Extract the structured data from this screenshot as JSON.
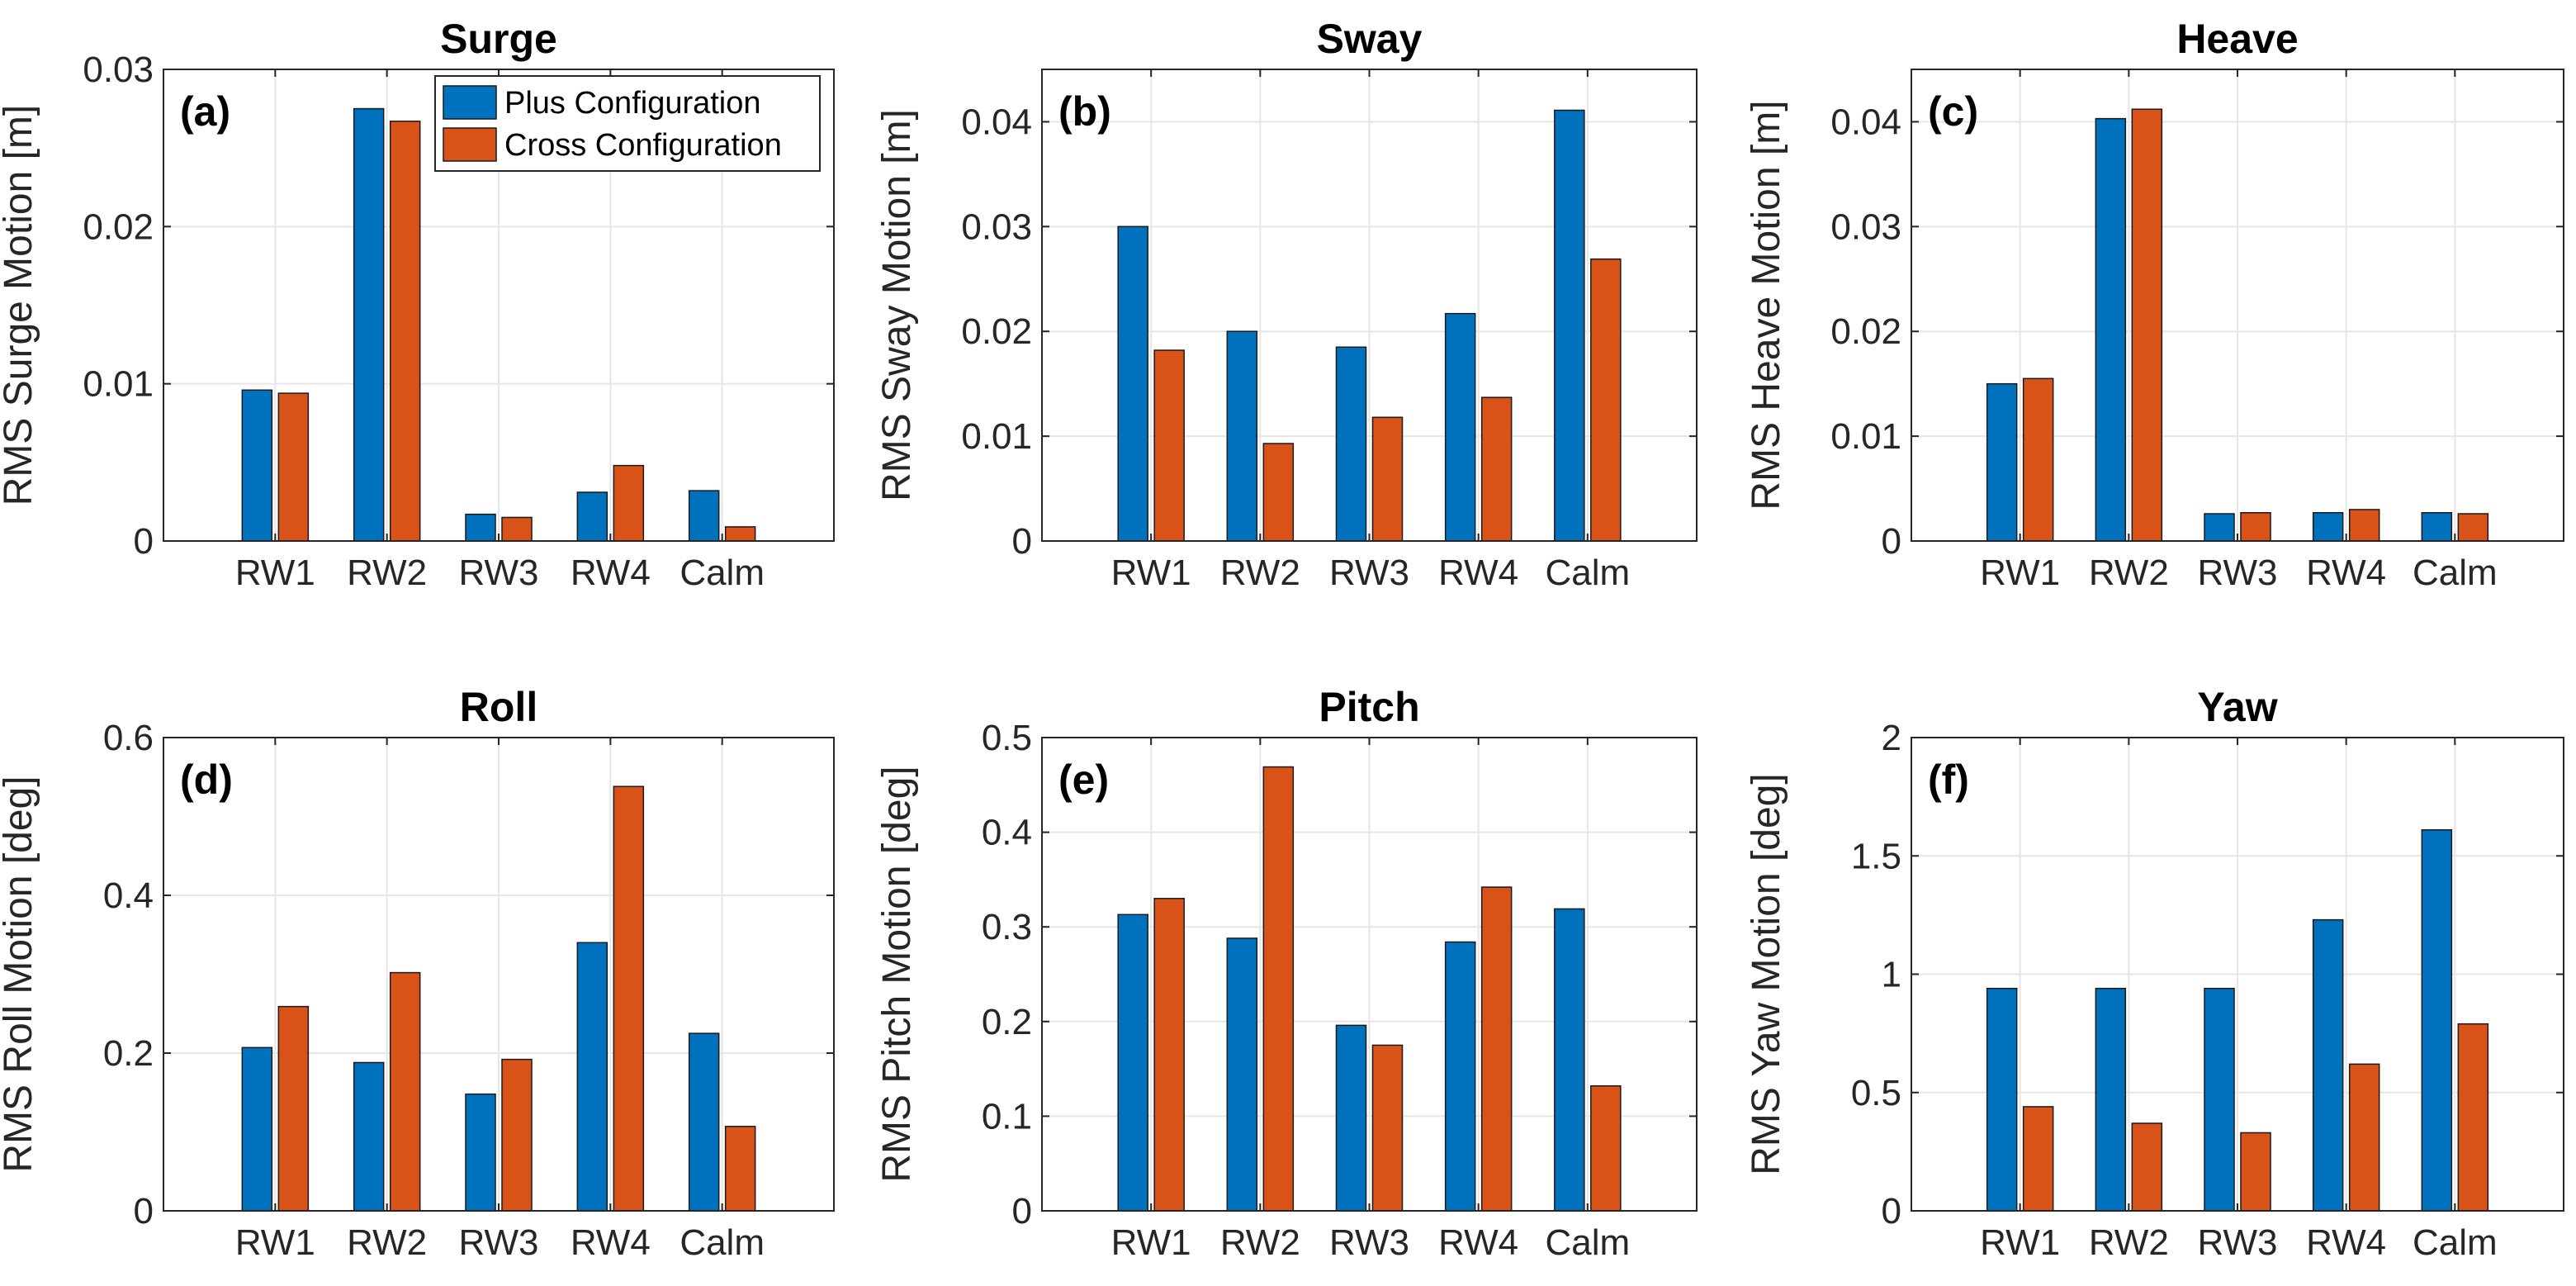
{
  "legend": {
    "items": [
      {
        "label": "Plus Configuration",
        "color": "#0072BD"
      },
      {
        "label": "Cross Configuration",
        "color": "#D95319"
      }
    ]
  },
  "chart_data": [
    {
      "type": "bar",
      "panel": "(a)",
      "title": "Surge",
      "ylabel": "RMS Surge Motion [m]",
      "xlabel": "",
      "categories": [
        "RW1",
        "RW2",
        "RW3",
        "RW4",
        "Calm"
      ],
      "ylim": [
        0,
        0.03
      ],
      "yticks": [
        0,
        0.01,
        0.02,
        0.03
      ],
      "ytick_labels": [
        "0",
        "0.01",
        "0.02",
        "0.03"
      ],
      "grid": true,
      "legend_position": "top-right",
      "series": [
        {
          "name": "Plus Configuration",
          "values": [
            0.0096,
            0.0275,
            0.0017,
            0.0031,
            0.0032
          ]
        },
        {
          "name": "Cross Configuration",
          "values": [
            0.0094,
            0.0267,
            0.0015,
            0.0048,
            0.0009
          ]
        }
      ]
    },
    {
      "type": "bar",
      "panel": "(b)",
      "title": "Sway",
      "ylabel": "RMS Sway Motion [m]",
      "xlabel": "",
      "categories": [
        "RW1",
        "RW2",
        "RW3",
        "RW4",
        "Calm"
      ],
      "ylim": [
        0,
        0.045
      ],
      "yticks": [
        0,
        0.01,
        0.02,
        0.03,
        0.04
      ],
      "ytick_labels": [
        "0",
        "0.01",
        "0.02",
        "0.03",
        "0.04"
      ],
      "grid": true,
      "series": [
        {
          "name": "Plus Configuration",
          "values": [
            0.03,
            0.02,
            0.0185,
            0.0217,
            0.0411
          ]
        },
        {
          "name": "Cross Configuration",
          "values": [
            0.0182,
            0.0093,
            0.0118,
            0.0137,
            0.0269
          ]
        }
      ]
    },
    {
      "type": "bar",
      "panel": "(c)",
      "title": "Heave",
      "ylabel": "RMS Heave Motion [m]",
      "xlabel": "",
      "categories": [
        "RW1",
        "RW2",
        "RW3",
        "RW4",
        "Calm"
      ],
      "ylim": [
        0,
        0.045
      ],
      "yticks": [
        0,
        0.01,
        0.02,
        0.03,
        0.04
      ],
      "ytick_labels": [
        "0",
        "0.01",
        "0.02",
        "0.03",
        "0.04"
      ],
      "grid": true,
      "series": [
        {
          "name": "Plus Configuration",
          "values": [
            0.015,
            0.0403,
            0.0026,
            0.0027,
            0.0027
          ]
        },
        {
          "name": "Cross Configuration",
          "values": [
            0.0155,
            0.0412,
            0.0027,
            0.003,
            0.0026
          ]
        }
      ]
    },
    {
      "type": "bar",
      "panel": "(d)",
      "title": "Roll",
      "ylabel": "RMS Roll Motion [deg]",
      "xlabel": "",
      "categories": [
        "RW1",
        "RW2",
        "RW3",
        "RW4",
        "Calm"
      ],
      "ylim": [
        0,
        0.6
      ],
      "yticks": [
        0,
        0.2,
        0.4,
        0.6
      ],
      "ytick_labels": [
        "0",
        "0.2",
        "0.4",
        "0.6"
      ],
      "grid": true,
      "series": [
        {
          "name": "Plus Configuration",
          "values": [
            0.207,
            0.188,
            0.148,
            0.34,
            0.225
          ]
        },
        {
          "name": "Cross Configuration",
          "values": [
            0.259,
            0.302,
            0.192,
            0.538,
            0.107
          ]
        }
      ]
    },
    {
      "type": "bar",
      "panel": "(e)",
      "title": "Pitch",
      "ylabel": "RMS Pitch Motion [deg]",
      "xlabel": "",
      "categories": [
        "RW1",
        "RW2",
        "RW3",
        "RW4",
        "Calm"
      ],
      "ylim": [
        0,
        0.5
      ],
      "yticks": [
        0,
        0.1,
        0.2,
        0.3,
        0.4,
        0.5
      ],
      "ytick_labels": [
        "0",
        "0.1",
        "0.2",
        "0.3",
        "0.4",
        "0.5"
      ],
      "grid": true,
      "series": [
        {
          "name": "Plus Configuration",
          "values": [
            0.313,
            0.288,
            0.196,
            0.284,
            0.319
          ]
        },
        {
          "name": "Cross Configuration",
          "values": [
            0.33,
            0.469,
            0.175,
            0.342,
            0.132
          ]
        }
      ]
    },
    {
      "type": "bar",
      "panel": "(f)",
      "title": "Yaw",
      "ylabel": "RMS Yaw Motion [deg]",
      "xlabel": "",
      "categories": [
        "RW1",
        "RW2",
        "RW3",
        "RW4",
        "Calm"
      ],
      "ylim": [
        0,
        2
      ],
      "yticks": [
        0,
        0.5,
        1,
        1.5,
        2
      ],
      "ytick_labels": [
        "0",
        "0.5",
        "1",
        "1.5",
        "2"
      ],
      "grid": true,
      "series": [
        {
          "name": "Plus Configuration",
          "values": [
            0.94,
            0.94,
            0.94,
            1.23,
            1.61
          ]
        },
        {
          "name": "Cross Configuration",
          "values": [
            0.44,
            0.37,
            0.33,
            0.62,
            0.79
          ]
        }
      ]
    }
  ]
}
